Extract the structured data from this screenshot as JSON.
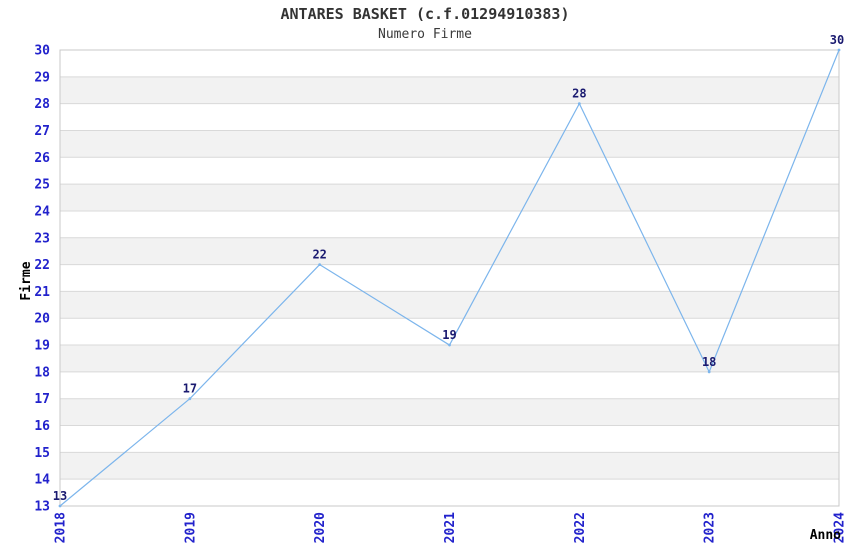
{
  "page": {
    "background": "#ffffff"
  },
  "chart_data": {
    "type": "line",
    "title": "ANTARES BASKET (c.f.01294910383)",
    "subtitle": "Numero Firme",
    "xlabel": "Anno",
    "ylabel": "Firme",
    "x": [
      2018,
      2019,
      2020,
      2021,
      2022,
      2023,
      2024
    ],
    "series": [
      {
        "name": "Numero Firme",
        "values": [
          13,
          17,
          22,
          19,
          28,
          18,
          30
        ]
      }
    ],
    "data_labels": [
      "13",
      "17",
      "22",
      "19",
      "28",
      "18",
      "30"
    ],
    "xticks": [
      "2018",
      "2019",
      "2020",
      "2021",
      "2022",
      "2023",
      "2024"
    ],
    "yticks": [
      "13",
      "14",
      "15",
      "16",
      "17",
      "18",
      "19",
      "20",
      "21",
      "22",
      "23",
      "24",
      "25",
      "26",
      "27",
      "28",
      "29",
      "30"
    ],
    "ylim": [
      13,
      30
    ],
    "xtick_rotation": 90,
    "grid": "horizontal-only",
    "banding": "alternating horizontal bands, gray between even and next odd gridline",
    "legend": "none",
    "colors": {
      "line": "#7cb5ec",
      "tick_label": "#2222cc",
      "data_label": "#1a1a70",
      "grid_line": "#d9d9d9",
      "band_fill": "#f2f2f2",
      "plot_border": "#c9c9c9",
      "title": "#333333",
      "subtitle": "#3a3a3a",
      "axis_title": "#000000"
    }
  }
}
